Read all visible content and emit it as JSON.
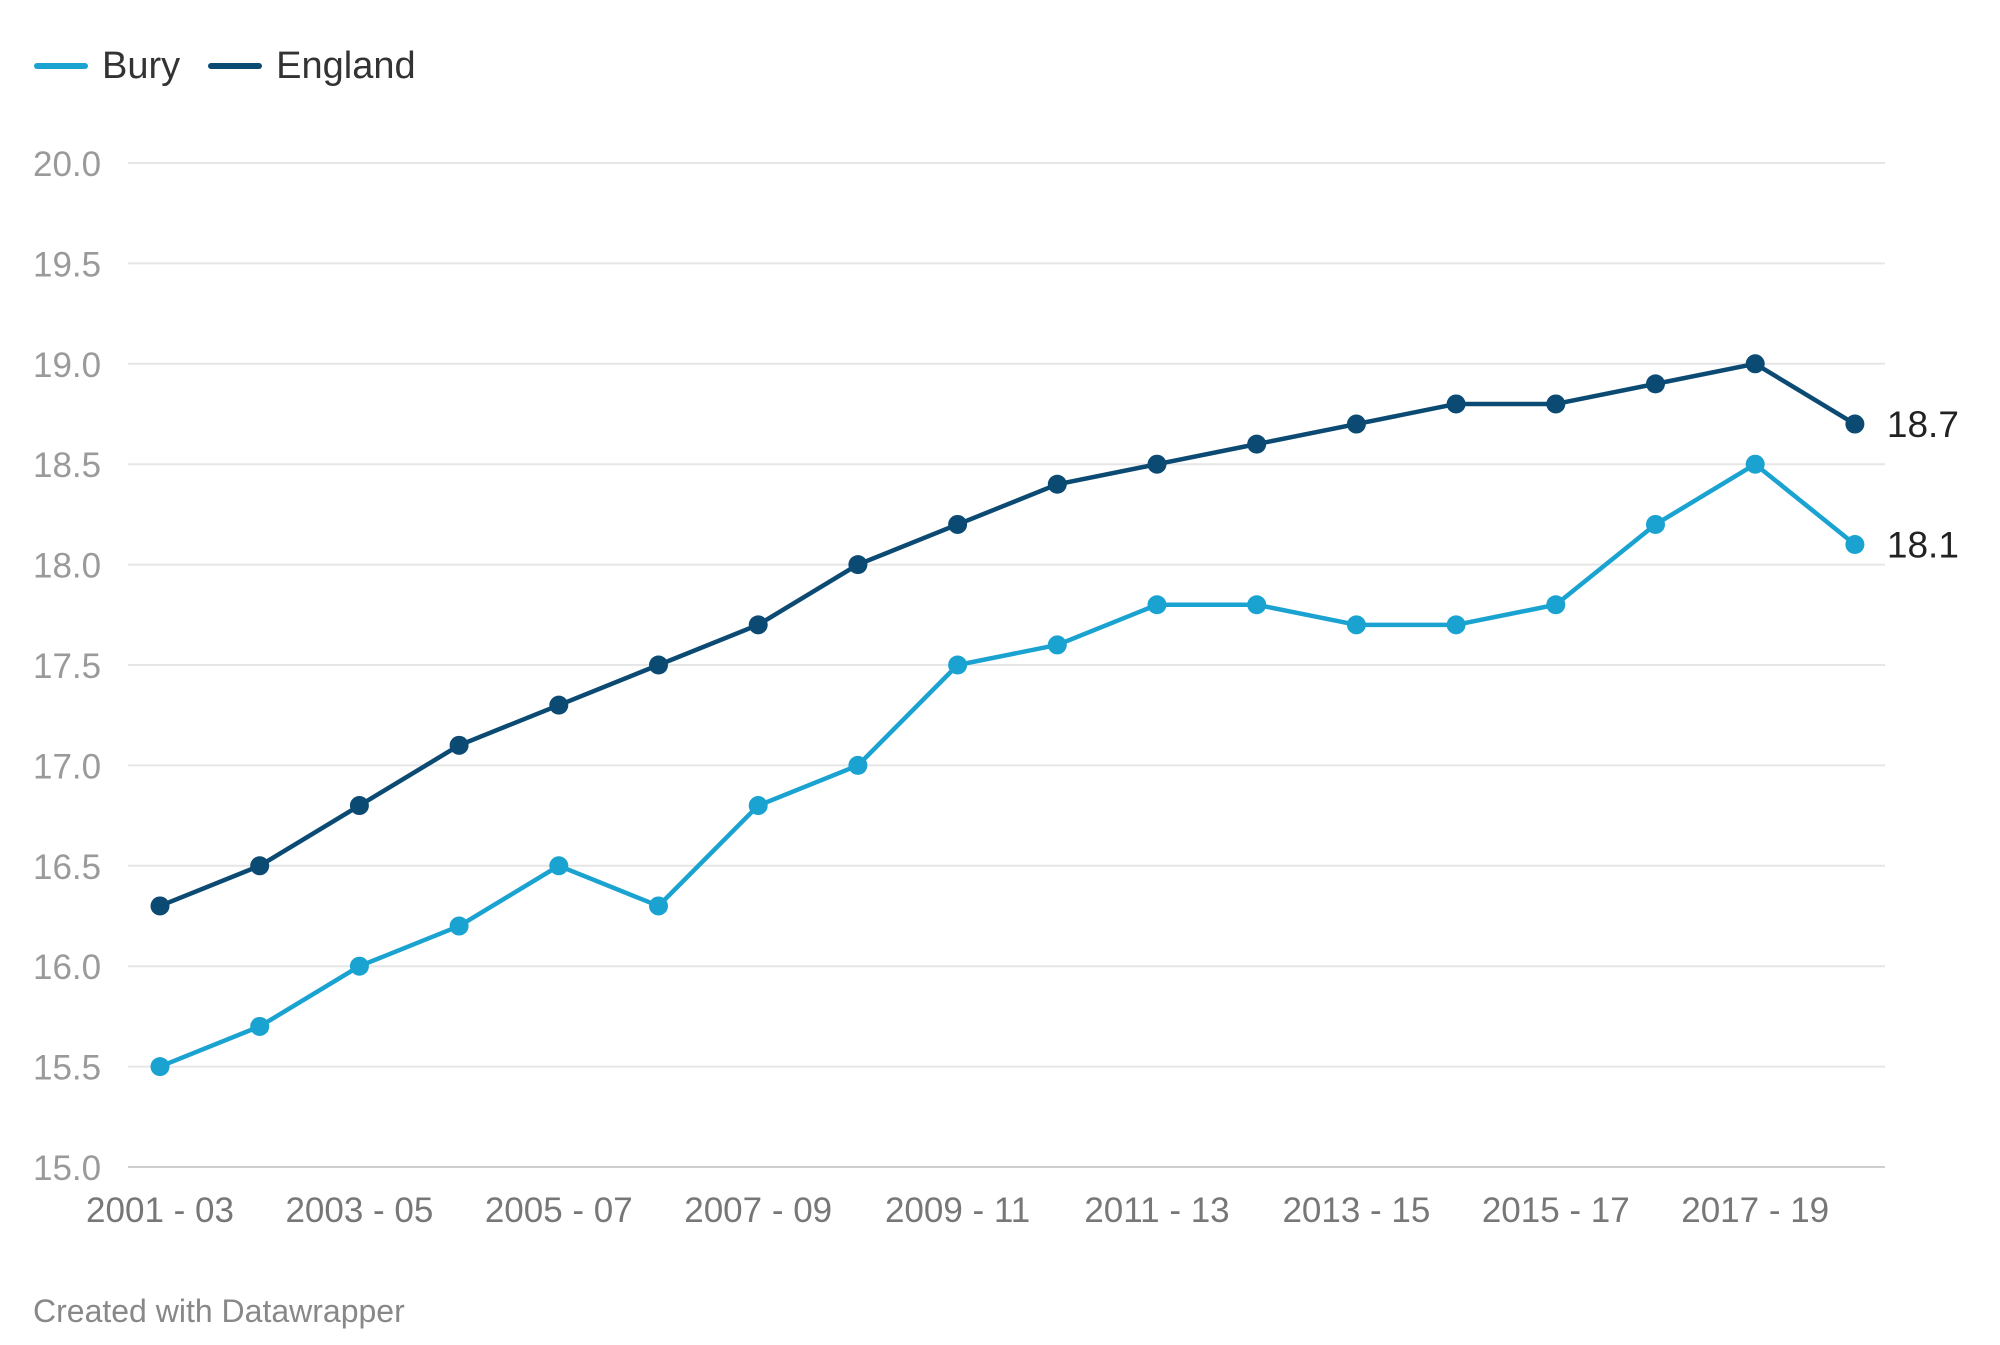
{
  "legend": {
    "items": [
      {
        "label": "Bury",
        "color": "#1aa3d1"
      },
      {
        "label": "England",
        "color": "#0b4a72"
      }
    ]
  },
  "footer": {
    "credit": "Created with Datawrapper"
  },
  "chart_data": {
    "type": "line",
    "title": "",
    "xlabel": "",
    "ylabel": "",
    "ylim": [
      15.0,
      20.0
    ],
    "yticks": [
      "15.0",
      "15.5",
      "16.0",
      "16.5",
      "17.0",
      "17.5",
      "18.0",
      "18.5",
      "19.0",
      "19.5",
      "20.0"
    ],
    "grid": true,
    "legend_position": "top-left",
    "categories": [
      "2001 - 03",
      "2002 - 04",
      "2003 - 05",
      "2004 - 06",
      "2005 - 07",
      "2006 - 08",
      "2007 - 09",
      "2008 - 10",
      "2009 - 11",
      "2010 - 12",
      "2011 - 13",
      "2012 - 14",
      "2013 - 15",
      "2014 - 16",
      "2015 - 17",
      "2016 - 18",
      "2017 - 19",
      "2018 - 20"
    ],
    "xtick_labels": [
      "2001 - 03",
      "2003 - 05",
      "2005 - 07",
      "2007 - 09",
      "2009 - 11",
      "2011 - 13",
      "2013 - 15",
      "2015 - 17",
      "2017 - 19"
    ],
    "series": [
      {
        "name": "Bury",
        "color": "#1aa3d1",
        "values": [
          15.5,
          15.7,
          16.0,
          16.2,
          16.5,
          16.3,
          16.8,
          17.0,
          17.5,
          17.6,
          17.8,
          17.8,
          17.7,
          17.7,
          17.8,
          18.2,
          18.5,
          18.1
        ],
        "end_label": "18.1"
      },
      {
        "name": "England",
        "color": "#0b4a72",
        "values": [
          16.3,
          16.5,
          16.8,
          17.1,
          17.3,
          17.5,
          17.7,
          18.0,
          18.2,
          18.4,
          18.5,
          18.6,
          18.7,
          18.8,
          18.8,
          18.9,
          19.0,
          18.7
        ],
        "end_label": "18.7"
      }
    ]
  }
}
